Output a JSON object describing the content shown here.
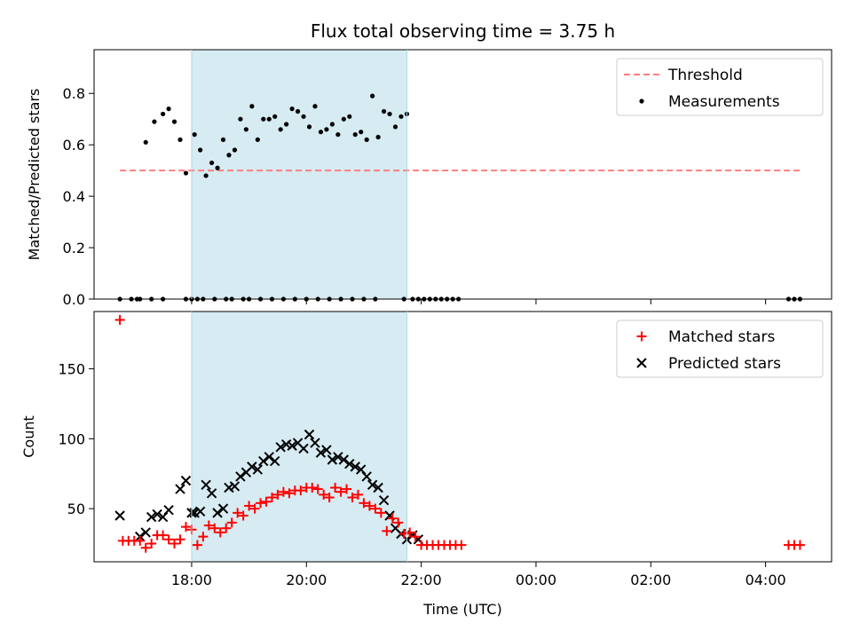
{
  "chart_data": [
    {
      "type": "scatter",
      "panel": "top",
      "title": "Flux total observing time = 3.75 h",
      "xlabel": "",
      "ylabel": "Matched/Predicted stars",
      "ylim": [
        0,
        0.97
      ],
      "yticks": [
        0.0,
        0.2,
        0.4,
        0.6,
        0.8
      ],
      "ytick_labels": [
        "0.0",
        "0.2",
        "0.4",
        "0.6",
        "0.8"
      ],
      "xlim": [
        16.3,
        29.15
      ],
      "observing_window": [
        18.0,
        21.75
      ],
      "legend": {
        "placement": "top-right",
        "entries": [
          "Threshold",
          "Measurements"
        ]
      },
      "series": [
        {
          "name": "Threshold",
          "style": "dashed-line",
          "color": "#ff7f7f",
          "x": [
            16.75,
            28.6
          ],
          "y": [
            0.5,
            0.5
          ]
        },
        {
          "name": "Measurements",
          "style": "dot",
          "color": "#000000",
          "x": [
            16.75,
            16.95,
            17.1,
            17.35,
            17.5,
            17.6,
            17.7,
            17.8,
            17.9,
            18.05,
            18.15,
            18.25,
            18.35,
            18.45,
            18.55,
            18.65,
            18.75,
            18.85,
            18.95,
            19.05,
            19.15,
            19.25,
            19.35,
            19.45,
            19.55,
            19.65,
            19.75,
            19.85,
            19.95,
            20.05,
            20.15,
            20.25,
            20.35,
            20.45,
            20.55,
            20.65,
            20.75,
            20.85,
            20.95,
            21.05,
            21.15,
            21.25,
            21.35,
            21.45,
            21.55,
            21.65,
            21.75,
            17.05,
            17.2,
            17.3,
            17.5,
            17.9,
            18.0,
            18.1,
            18.2,
            18.4,
            18.6,
            18.7,
            18.9,
            19.0,
            19.2,
            19.4,
            19.6,
            19.8,
            20.0,
            20.2,
            20.4,
            20.6,
            20.8,
            21.0,
            21.2,
            21.7,
            21.85,
            21.95,
            22.05,
            22.15,
            22.25,
            22.35,
            22.45,
            22.55,
            22.65,
            28.4,
            28.5,
            28.6
          ],
          "y": [
            0.0,
            0.0,
            0.0,
            0.69,
            0.72,
            0.74,
            0.69,
            0.62,
            0.0,
            0.64,
            0.58,
            0.48,
            0.53,
            0.51,
            0.62,
            0.56,
            0.58,
            0.7,
            0.66,
            0.75,
            0.62,
            0.7,
            0.7,
            0.71,
            0.66,
            0.68,
            0.74,
            0.73,
            0.71,
            0.67,
            0.75,
            0.65,
            0.66,
            0.68,
            0.64,
            0.7,
            0.71,
            0.64,
            0.65,
            0.62,
            0.79,
            0.63,
            0.73,
            0.72,
            0.67,
            0.71,
            0.72,
            0.0,
            0.61,
            0.0,
            0.0,
            0.49,
            0.0,
            0.0,
            0.0,
            0.0,
            0.0,
            0.0,
            0.0,
            0.0,
            0.0,
            0.0,
            0.0,
            0.0,
            0.0,
            0.0,
            0.0,
            0.0,
            0.0,
            0.0,
            0.0,
            0.0,
            0.0,
            0.0,
            0.0,
            0.0,
            0.0,
            0.0,
            0.0,
            0.0,
            0.0,
            0.0,
            0.0,
            0.0
          ]
        }
      ]
    },
    {
      "type": "scatter",
      "panel": "bottom",
      "title": "",
      "xlabel": "Time (UTC)",
      "ylabel": "Count",
      "ylim": [
        12,
        191
      ],
      "yticks": [
        50,
        100,
        150
      ],
      "ytick_labels": [
        "50",
        "100",
        "150"
      ],
      "xlim": [
        16.3,
        29.15
      ],
      "xticks": [
        18,
        20,
        22,
        24,
        26,
        28
      ],
      "xtick_labels": [
        "18:00",
        "20:00",
        "22:00",
        "00:00",
        "02:00",
        "04:00"
      ],
      "observing_window": [
        18.0,
        21.75
      ],
      "legend": {
        "placement": "top-right",
        "entries": [
          "Matched stars",
          "Predicted stars"
        ]
      },
      "series": [
        {
          "name": "Matched stars",
          "marker": "plus",
          "color": "#ff0000",
          "x": [
            16.75,
            16.8,
            16.9,
            17.0,
            17.1,
            17.2,
            17.3,
            17.4,
            17.5,
            17.6,
            17.7,
            17.8,
            17.9,
            18.0,
            18.1,
            18.2,
            18.3,
            18.4,
            18.5,
            18.6,
            18.7,
            18.8,
            18.9,
            19.0,
            19.1,
            19.2,
            19.3,
            19.4,
            19.5,
            19.6,
            19.7,
            19.8,
            19.9,
            20.0,
            20.1,
            20.2,
            20.3,
            20.4,
            20.5,
            20.6,
            20.7,
            20.8,
            20.9,
            21.0,
            21.1,
            21.2,
            21.3,
            21.4,
            21.5,
            21.6,
            21.7,
            21.8,
            21.9,
            22.0,
            22.1,
            22.2,
            22.3,
            22.4,
            22.5,
            22.6,
            22.7,
            28.4,
            28.5,
            28.6
          ],
          "y": [
            185,
            27,
            27,
            27,
            27,
            22,
            25,
            31,
            31,
            28,
            25,
            28,
            37,
            35,
            24,
            30,
            38,
            36,
            33,
            36,
            40,
            47,
            45,
            52,
            50,
            54,
            55,
            58,
            60,
            62,
            61,
            63,
            63,
            65,
            65,
            64,
            60,
            58,
            65,
            62,
            64,
            58,
            60,
            54,
            52,
            50,
            47,
            34,
            43,
            40,
            32,
            33,
            30,
            24,
            24,
            24,
            24,
            24,
            24,
            24,
            24,
            24,
            24,
            24
          ]
        },
        {
          "name": "Predicted stars",
          "marker": "x",
          "color": "#000000",
          "x": [
            16.75,
            17.1,
            17.2,
            17.3,
            17.4,
            17.5,
            17.6,
            17.8,
            17.9,
            18.0,
            18.05,
            18.15,
            18.25,
            18.35,
            18.45,
            18.55,
            18.65,
            18.75,
            18.85,
            18.95,
            19.05,
            19.15,
            19.25,
            19.35,
            19.45,
            19.55,
            19.65,
            19.75,
            19.85,
            19.95,
            20.05,
            20.15,
            20.25,
            20.35,
            20.45,
            20.55,
            20.65,
            20.75,
            20.85,
            20.95,
            21.05,
            21.15,
            21.25,
            21.35,
            21.45,
            21.55,
            21.65,
            21.75,
            21.85,
            21.95
          ],
          "y": [
            45,
            30,
            33,
            44,
            46,
            44,
            49,
            64,
            70,
            47,
            47,
            48,
            67,
            61,
            47,
            50,
            65,
            66,
            73,
            76,
            80,
            78,
            84,
            87,
            84,
            94,
            96,
            95,
            97,
            93,
            103,
            97,
            90,
            92,
            85,
            87,
            85,
            82,
            80,
            78,
            73,
            67,
            65,
            56,
            45,
            36,
            32,
            28,
            31,
            28
          ]
        }
      ]
    }
  ]
}
